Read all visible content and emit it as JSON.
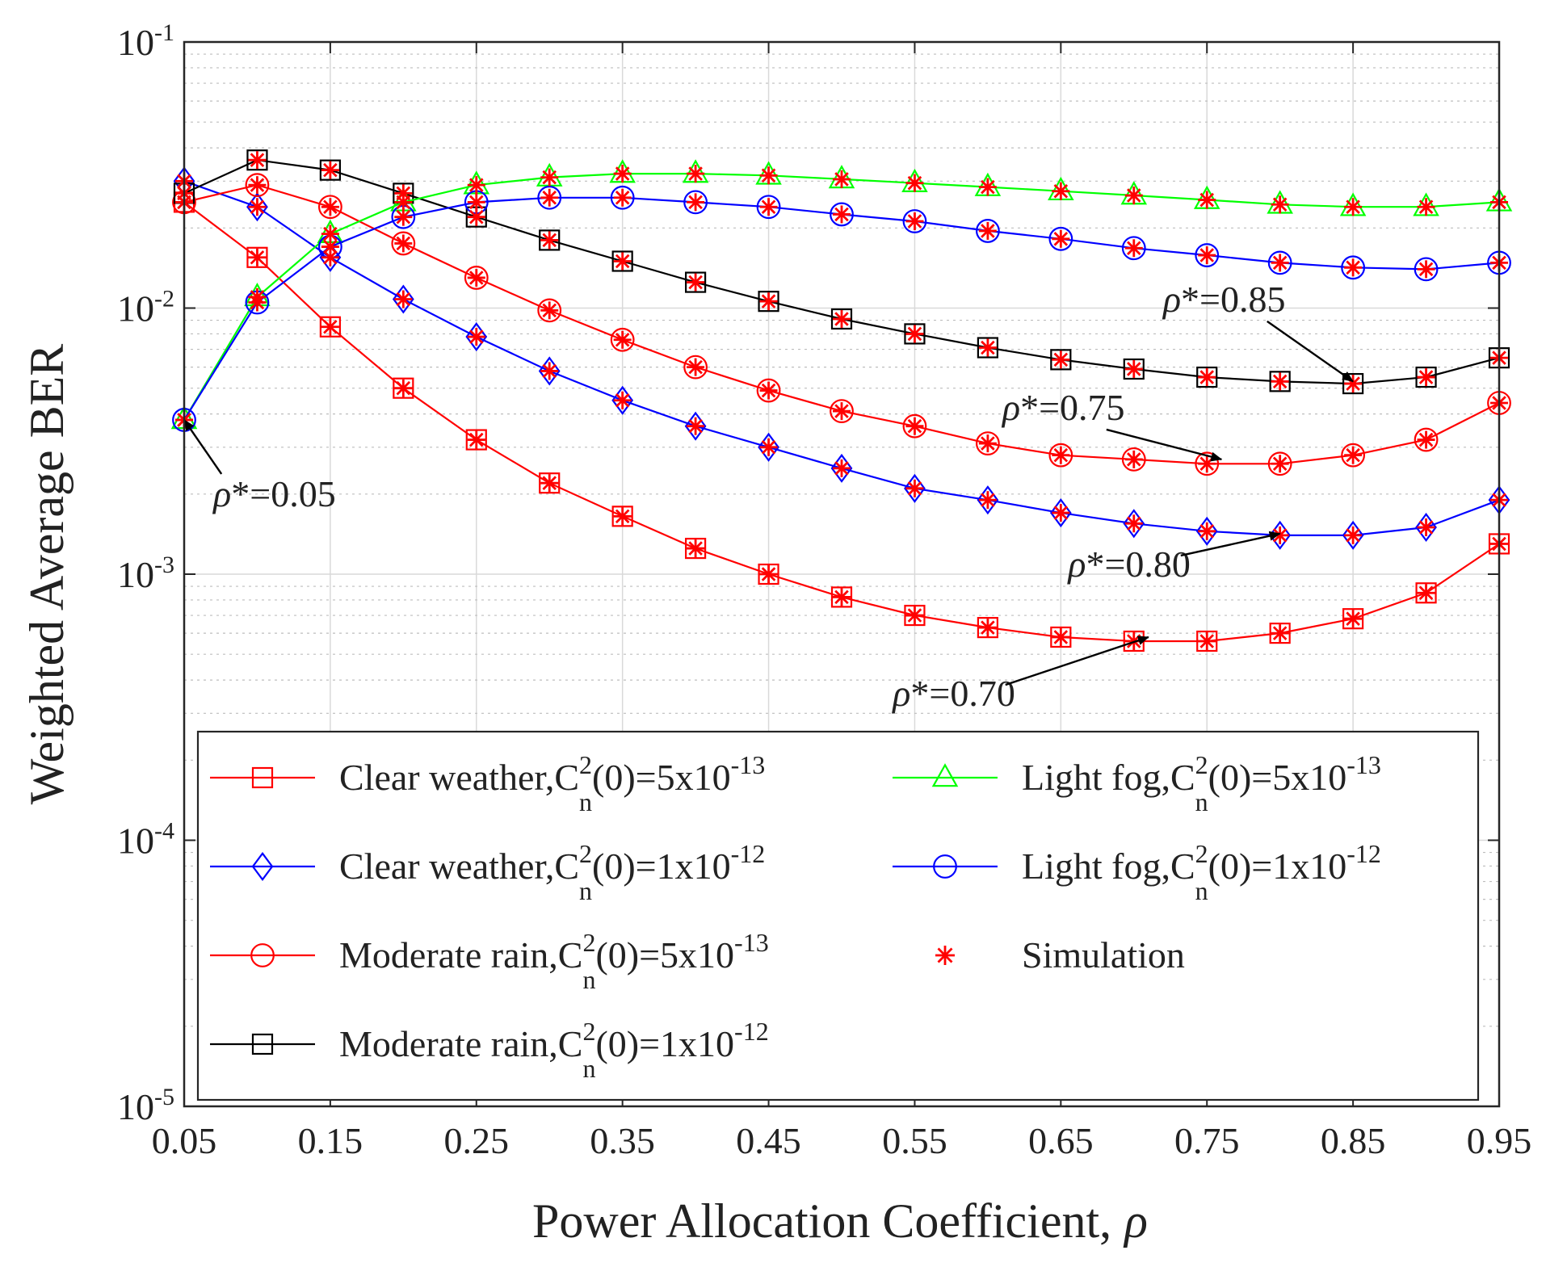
{
  "chart_data": {
    "type": "line",
    "title": "",
    "xlabel": "Power Allocation Coefficient,",
    "xlabel_symbol": "ρ",
    "ylabel": "Weighted Average BER",
    "yscale": "log",
    "xlim": [
      0.05,
      0.95
    ],
    "ylim_exponent": [
      -5,
      -1
    ],
    "grid": true,
    "legend_position": "lower-center",
    "x": [
      0.05,
      0.1,
      0.15,
      0.2,
      0.25,
      0.3,
      0.35,
      0.4,
      0.45,
      0.5,
      0.55,
      0.6,
      0.65,
      0.7,
      0.75,
      0.8,
      0.85,
      0.9,
      0.95
    ],
    "x_tick_labels": [
      "0.05",
      "0.15",
      "0.25",
      "0.35",
      "0.45",
      "0.55",
      "0.65",
      "0.75",
      "0.85",
      "0.95"
    ],
    "x_ticks": [
      0.05,
      0.15,
      0.25,
      0.35,
      0.45,
      0.55,
      0.65,
      0.75,
      0.85,
      0.95
    ],
    "y_ticks": [
      {
        "base": "10",
        "exp": "-1",
        "value": 0.1
      },
      {
        "base": "10",
        "exp": "-2",
        "value": 0.01
      },
      {
        "base": "10",
        "exp": "-3",
        "value": 0.001
      },
      {
        "base": "10",
        "exp": "-4",
        "value": 0.0001
      },
      {
        "base": "10",
        "exp": "-5",
        "value": 1e-05
      }
    ],
    "series": [
      {
        "name": "Clear weather,C_n^2(0)=5x10^-13",
        "legend_main": "Clear weather,C",
        "legend_sup": "2",
        "legend_sub": "n",
        "legend_mid": "(0)=5x10",
        "legend_exp": "-13",
        "color": "#ff0000",
        "marker": "square",
        "values": [
          0.025,
          0.0155,
          0.0085,
          0.005,
          0.0032,
          0.0022,
          0.00165,
          0.00125,
          0.001,
          0.00082,
          0.0007,
          0.00063,
          0.00058,
          0.00056,
          0.00056,
          0.0006,
          0.00068,
          0.00085,
          0.0013
        ]
      },
      {
        "name": "Clear weather,C_n^2(0)=1x10^-12",
        "legend_main": "Clear weather,C",
        "legend_sup": "2",
        "legend_sub": "n",
        "legend_mid": "(0)=1x10",
        "legend_exp": "-12",
        "color": "#0000ff",
        "marker": "diamond",
        "values": [
          0.03,
          0.024,
          0.0155,
          0.0108,
          0.0078,
          0.0058,
          0.0045,
          0.0036,
          0.003,
          0.0025,
          0.0021,
          0.0019,
          0.0017,
          0.00155,
          0.00145,
          0.0014,
          0.0014,
          0.0015,
          0.0019
        ]
      },
      {
        "name": "Moderate rain,C_n^2(0)=5x10^-13",
        "legend_main": "Moderate rain,C",
        "legend_sup": "2",
        "legend_sub": "n",
        "legend_mid": "(0)=5x10",
        "legend_exp": "-13",
        "color": "#ff0000",
        "marker": "circle",
        "values": [
          0.025,
          0.029,
          0.024,
          0.0175,
          0.013,
          0.0098,
          0.0076,
          0.006,
          0.0049,
          0.0041,
          0.0036,
          0.0031,
          0.0028,
          0.0027,
          0.0026,
          0.0026,
          0.0028,
          0.0032,
          0.0044
        ]
      },
      {
        "name": "Moderate rain,C_n^2(0)=1x10^-12",
        "legend_main": "Moderate rain,C",
        "legend_sup": "2",
        "legend_sub": "n",
        "legend_mid": "(0)=1x10",
        "legend_exp": "-12",
        "color": "#000000",
        "marker": "square",
        "values": [
          0.027,
          0.036,
          0.033,
          0.027,
          0.022,
          0.018,
          0.015,
          0.0125,
          0.0106,
          0.0091,
          0.008,
          0.0071,
          0.0064,
          0.0059,
          0.0055,
          0.0053,
          0.0052,
          0.0055,
          0.0065
        ]
      },
      {
        "name": "Light fog,C_n^2(0)=5x10^-13",
        "legend_main": "Light fog,C",
        "legend_sup": "2",
        "legend_sub": "n",
        "legend_mid": "(0)=5x10",
        "legend_exp": "-13",
        "color": "#00ff00",
        "marker": "triangle",
        "values": [
          0.0038,
          0.011,
          0.019,
          0.025,
          0.029,
          0.031,
          0.032,
          0.032,
          0.0315,
          0.0305,
          0.0295,
          0.0285,
          0.0275,
          0.0265,
          0.0255,
          0.0245,
          0.024,
          0.024,
          0.025
        ]
      },
      {
        "name": "Light fog,C_n^2(0)=1x10^-12",
        "legend_main": "Light fog,C",
        "legend_sup": "2",
        "legend_sub": "n",
        "legend_mid": "(0)=1x10",
        "legend_exp": "-12",
        "color": "#0000ff",
        "marker": "circle",
        "values": [
          0.0038,
          0.0105,
          0.017,
          0.022,
          0.025,
          0.026,
          0.026,
          0.025,
          0.024,
          0.0225,
          0.0212,
          0.0195,
          0.0182,
          0.0168,
          0.0158,
          0.0148,
          0.0142,
          0.014,
          0.0148
        ]
      }
    ],
    "simulation_legend": "Simulation",
    "simulation_color": "#ff0000",
    "annotations": [
      {
        "label": "ρ*=0.05",
        "text_x": 0.07,
        "text_y": 0.0018,
        "target_x": 0.05,
        "target_y": 0.0038
      },
      {
        "label": "ρ*=0.85",
        "text_x": 0.72,
        "text_y": 0.0097,
        "target_x": 0.85,
        "target_y": 0.0053
      },
      {
        "label": "ρ*=0.75",
        "text_x": 0.61,
        "text_y": 0.0038,
        "target_x": 0.76,
        "target_y": 0.0027
      },
      {
        "label": "ρ*=0.80",
        "text_x": 0.655,
        "text_y": 0.00098,
        "target_x": 0.8,
        "target_y": 0.00142
      },
      {
        "label": "ρ*=0.70",
        "text_x": 0.535,
        "text_y": 0.00032,
        "target_x": 0.71,
        "target_y": 0.00058
      }
    ]
  }
}
